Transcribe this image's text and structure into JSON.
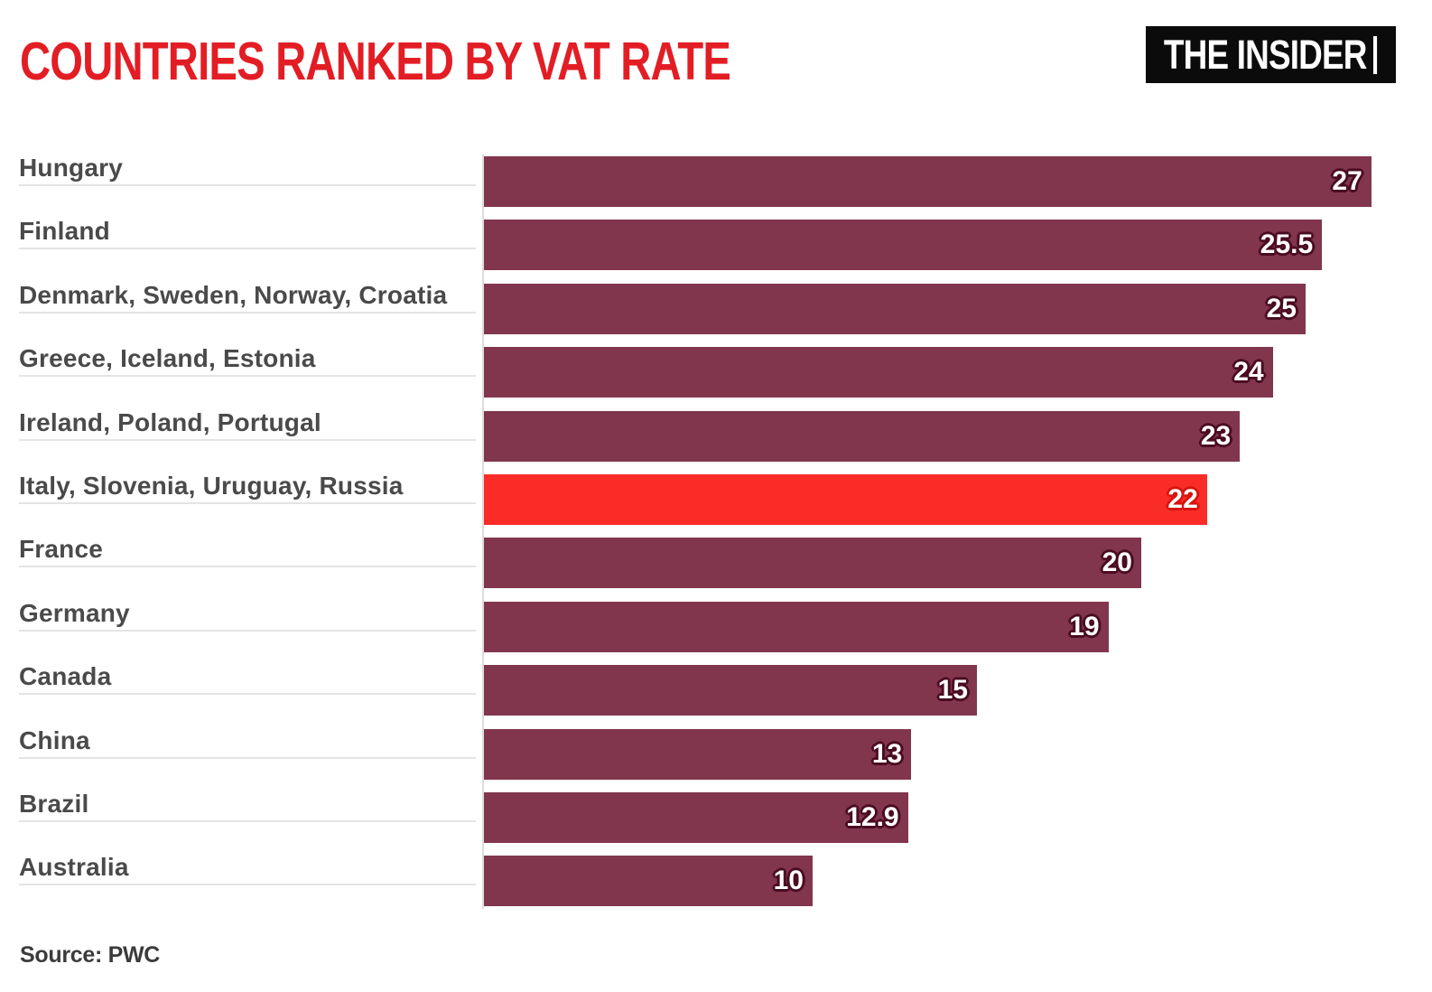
{
  "logo": {
    "text": "THE INSIDER"
  },
  "source": "Source: PWC",
  "colors": {
    "title": "#e31d24",
    "bar": "#81364e",
    "bar_outline": "#4a0c22",
    "highlight_bar": "#fa2c28",
    "highlight_outline": "#d8140f",
    "label": "#4a4a4a",
    "underline": "#e4e4e4",
    "axis_line": "#dcdcdc",
    "source_text": "#3b3b3b",
    "logo_bg": "#0b0b0b",
    "logo_fg": "#ffffff"
  },
  "chart_data": {
    "type": "bar",
    "orientation": "horizontal",
    "title": "COUNTRIES RANKED BY VAT RATE",
    "categories": [
      "Hungary",
      "Finland",
      "Denmark, Sweden, Norway, Croatia",
      "Greece, Iceland, Estonia",
      "Ireland, Poland, Portugal",
      "Italy, Slovenia, Uruguay, Russia",
      "France",
      "Germany",
      "Canada",
      "China",
      "Brazil",
      "Australia"
    ],
    "values": [
      27,
      25.5,
      25,
      24,
      23,
      22,
      20,
      19,
      15,
      13,
      12.9,
      10
    ],
    "value_labels": [
      "27",
      "25.5",
      "25",
      "24",
      "23",
      "22",
      "20",
      "19",
      "15",
      "13",
      "12.9",
      "10"
    ],
    "highlight_index": 5,
    "xlim": [
      0,
      27
    ],
    "grid": false,
    "legend": "none",
    "value_label_position": "inside-end",
    "source": "Source: PWC"
  }
}
